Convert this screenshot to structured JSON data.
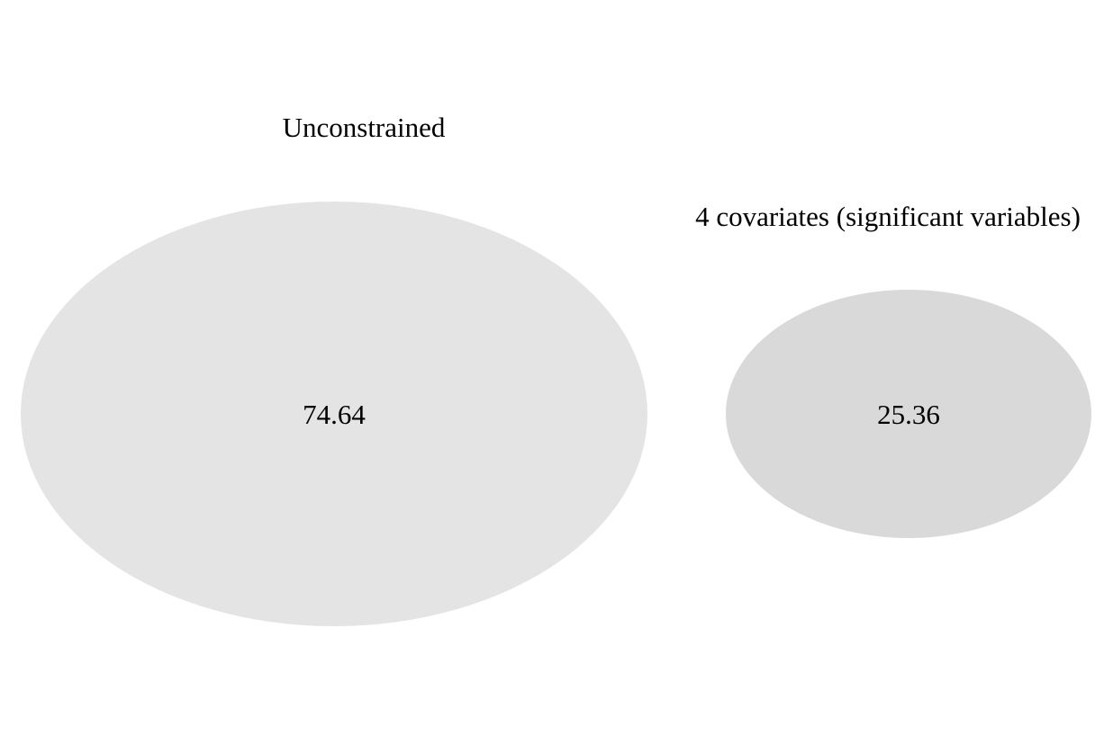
{
  "diagram": {
    "type": "euler",
    "sets": [
      {
        "label": "Unconstrained",
        "value": "74.64",
        "fill": "#e4e4e4"
      },
      {
        "label": "4 covariates (significant variables)",
        "value": "25.36",
        "fill": "#d9d9d9"
      }
    ]
  }
}
